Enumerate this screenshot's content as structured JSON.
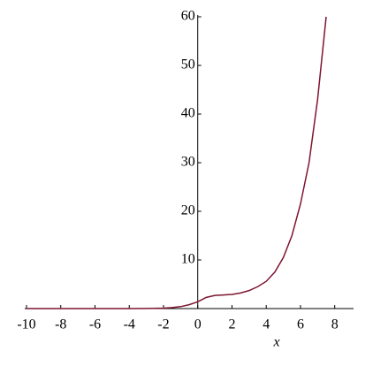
{
  "chart_data": {
    "type": "line",
    "x_label": "x",
    "x": [
      -10,
      -8,
      -6,
      -4,
      -3,
      -2,
      -1.5,
      -1,
      -0.5,
      0,
      0.5,
      1,
      1.5,
      2,
      2.5,
      3,
      3.5,
      4,
      4.5,
      5,
      5.5,
      6,
      6.5,
      7,
      7.5
    ],
    "series": [
      {
        "color": "#7f1530",
        "values": [
          0,
          0,
          0,
          0,
          0.02,
          0.08,
          0.2,
          0.4,
          0.8,
          1.4,
          2.3,
          2.7,
          2.8,
          2.9,
          3.2,
          3.7,
          4.5,
          5.6,
          7.5,
          10.5,
          15,
          21.5,
          30,
          43,
          60
        ]
      }
    ],
    "xlim": [
      -10,
      9.1
    ],
    "ylim": [
      0,
      60
    ],
    "xticks": [
      -10,
      -8,
      -6,
      -4,
      -2,
      0,
      2,
      4,
      6,
      8
    ],
    "yticks": [
      10,
      20,
      30,
      40,
      50,
      60
    ]
  }
}
